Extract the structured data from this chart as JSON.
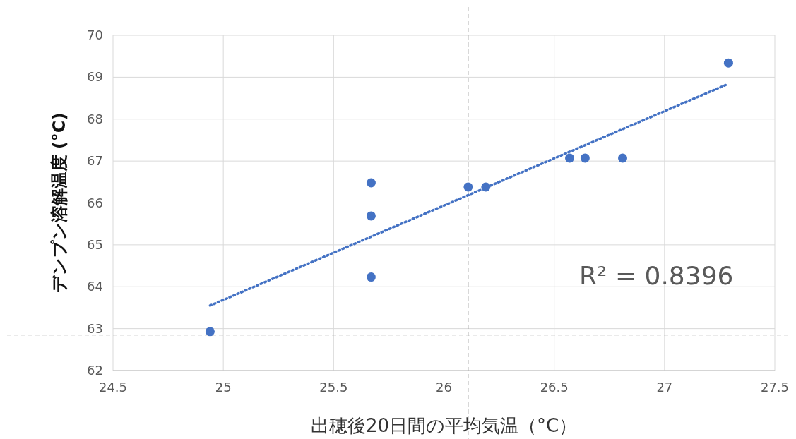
{
  "chart_data": {
    "type": "scatter",
    "xlabel": "出穂後20日間の平均気温（°C）",
    "ylabel": "デンプン溶解温度 (°C)",
    "xlim": [
      24.5,
      27.5
    ],
    "xticks": [
      24.5,
      25,
      25.5,
      26,
      26.5,
      27,
      27.5
    ],
    "ylim": [
      62,
      70
    ],
    "yticks": [
      62,
      63,
      64,
      65,
      66,
      67,
      68,
      69,
      70
    ],
    "grid": true,
    "marker": "circle",
    "series": [
      {
        "type": "scatter",
        "color": "#4472c4",
        "x": [
          24.94,
          25.67,
          25.67,
          25.67,
          26.11,
          26.19,
          26.57,
          26.64,
          26.81,
          27.29
        ],
        "values": [
          62.93,
          66.48,
          65.69,
          64.23,
          66.38,
          66.38,
          67.07,
          67.07,
          67.07,
          69.34
        ]
      },
      {
        "type": "line",
        "color": "#4472c4",
        "line_style": "dotted",
        "marker": "none",
        "x": [
          24.94,
          27.28
        ],
        "values": [
          63.55,
          68.82
        ]
      }
    ],
    "ref_lines": [
      {
        "axis": "x",
        "value": 26.11,
        "color": "#aaaaaa",
        "line_style": "dashed"
      },
      {
        "axis": "y",
        "value": 62.85,
        "color": "#aaaaaa",
        "line_style": "dashed"
      }
    ],
    "annotations": [
      "R² = 0.8396"
    ]
  }
}
